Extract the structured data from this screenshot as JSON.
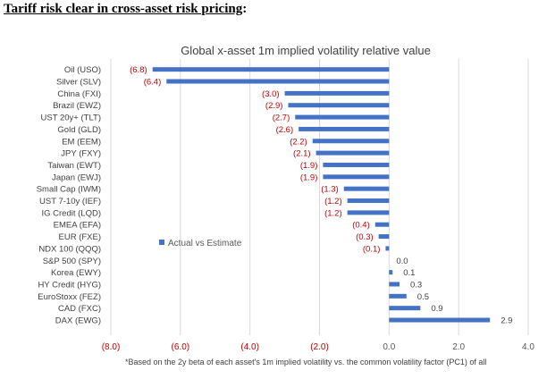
{
  "headline": {
    "text": "Tariff risk clear in cross-asset risk pricing",
    "suffix": ":"
  },
  "colors": {
    "bar": "#4472C4",
    "negative_label": "#C00000",
    "positive_label": "#404040",
    "grid": "#D9D9D9",
    "axis_label": "#595959"
  },
  "chart_data": {
    "type": "bar",
    "orientation": "horizontal",
    "title": "Global x-asset 1m implied volatility relative value",
    "legend": {
      "label": "Actual vs Estimate",
      "placement": "center-left"
    },
    "footnote": "*Based on the 2y beta of each asset's 1m implied volatility vs. the common volatility factor (PC1) of all",
    "xlim": [
      -8,
      4
    ],
    "x_ticks": [
      -8,
      -6,
      -4,
      -2,
      0,
      2,
      4
    ],
    "x_tick_labels": [
      "(8.0)",
      "(6.0)",
      "(4.0)",
      "(2.0)",
      "0.0",
      "2.0",
      "4.0"
    ],
    "categories": [
      "Oil (USO)",
      "Silver (SLV)",
      "China (FXI)",
      "Brazil (EWZ)",
      "UST 20y+ (TLT)",
      "Gold (GLD)",
      "EM (EEM)",
      "JPY (FXY)",
      "Taiwan (EWT)",
      "Japan (EWJ)",
      "Small Cap (IWM)",
      "UST 7-10y (IEF)",
      "IG Credit (LQD)",
      "EMEA (EFA)",
      "EUR (FXE)",
      "NDX 100 (QQQ)",
      "S&P 500 (SPY)",
      "Korea (EWY)",
      "HY Credit (HYG)",
      "EuroStoxx (FEZ)",
      "CAD (FXC)",
      "DAX (EWG)"
    ],
    "values": [
      -6.8,
      -6.4,
      -3.0,
      -2.9,
      -2.7,
      -2.6,
      -2.2,
      -2.1,
      -1.9,
      -1.9,
      -1.3,
      -1.2,
      -1.2,
      -0.4,
      -0.3,
      -0.1,
      0.0,
      0.1,
      0.3,
      0.5,
      0.9,
      2.9
    ],
    "value_labels": [
      "(6.8)",
      "(6.4)",
      "(3.0)",
      "(2.9)",
      "(2.7)",
      "(2.6)",
      "(2.2)",
      "(2.1)",
      "(1.9)",
      "(1.9)",
      "(1.3)",
      "(1.2)",
      "(1.2)",
      "(0.4)",
      "(0.3)",
      "(0.1)",
      "0.0",
      "0.1",
      "0.3",
      "0.5",
      "0.9",
      "2.9"
    ]
  }
}
